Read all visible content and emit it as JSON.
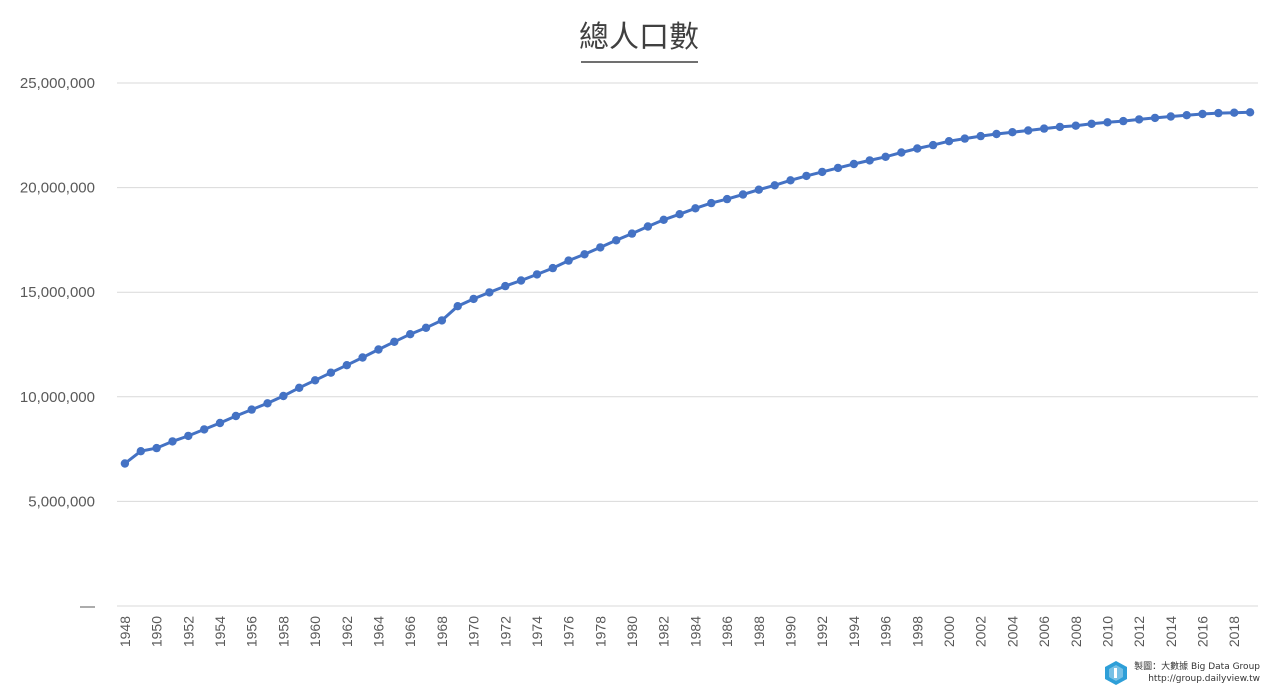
{
  "chart_data": {
    "type": "line",
    "title": "總人口數",
    "xlabel": "",
    "ylabel": "",
    "ylim": [
      0,
      25000000
    ],
    "y_tick_labels": [
      "—",
      "5,000,000",
      "10,000,000",
      "15,000,000",
      "20,000,000",
      "25,000,000"
    ],
    "grid": true,
    "legend": "none",
    "series_color": "#4472C4",
    "x": [
      1948,
      1949,
      1950,
      1951,
      1952,
      1953,
      1954,
      1955,
      1956,
      1957,
      1958,
      1959,
      1960,
      1961,
      1962,
      1963,
      1964,
      1965,
      1966,
      1967,
      1968,
      1969,
      1970,
      1971,
      1972,
      1973,
      1974,
      1975,
      1976,
      1977,
      1978,
      1979,
      1980,
      1981,
      1982,
      1983,
      1984,
      1985,
      1986,
      1987,
      1988,
      1989,
      1990,
      1991,
      1992,
      1993,
      1994,
      1995,
      1996,
      1997,
      1998,
      1999,
      2000,
      2001,
      2002,
      2003,
      2004,
      2005,
      2006,
      2007,
      2008,
      2009,
      2010,
      2011,
      2012,
      2013,
      2014,
      2015,
      2016,
      2017,
      2018,
      2019
    ],
    "x_tick_labels": [
      "1948",
      "1950",
      "1952",
      "1954",
      "1956",
      "1958",
      "1960",
      "1962",
      "1964",
      "1966",
      "1968",
      "1970",
      "1972",
      "1974",
      "1976",
      "1978",
      "1980",
      "1982",
      "1984",
      "1986",
      "1988",
      "1990",
      "1992",
      "1994",
      "1996",
      "1998",
      "2000",
      "2002",
      "2004",
      "2006",
      "2008",
      "2010",
      "2012",
      "2014",
      "2016",
      "2018"
    ],
    "values": [
      6810000,
      7400000,
      7550000,
      7870000,
      8130000,
      8440000,
      8750000,
      9080000,
      9390000,
      9690000,
      10040000,
      10430000,
      10790000,
      11150000,
      11510000,
      11880000,
      12260000,
      12630000,
      12990000,
      13300000,
      13650000,
      14330000,
      14680000,
      14990000,
      15290000,
      15560000,
      15850000,
      16150000,
      16510000,
      16810000,
      17140000,
      17480000,
      17800000,
      18140000,
      18460000,
      18730000,
      19010000,
      19260000,
      19450000,
      19670000,
      19900000,
      20110000,
      20350000,
      20560000,
      20750000,
      20940000,
      21130000,
      21300000,
      21470000,
      21680000,
      21870000,
      22030000,
      22220000,
      22340000,
      22460000,
      22560000,
      22650000,
      22730000,
      22820000,
      22900000,
      22960000,
      23050000,
      23120000,
      23180000,
      23260000,
      23330000,
      23400000,
      23460000,
      23520000,
      23560000,
      23580000,
      23600000
    ]
  },
  "credit": {
    "line1": "製圖：大數據 Big Data Group",
    "line2": "http://group.dailyview.tw"
  }
}
